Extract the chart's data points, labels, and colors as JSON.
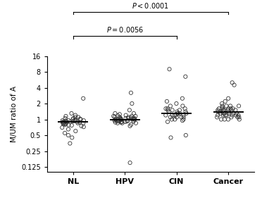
{
  "groups": [
    "NL",
    "HPV",
    "CIN",
    "Cancer"
  ],
  "group_positions": [
    1,
    2,
    3,
    4
  ],
  "ylabel": "M/UM ratio of A",
  "yticks": [
    0.125,
    0.25,
    0.5,
    1,
    2,
    4,
    8,
    16
  ],
  "ytick_labels": [
    "0.125",
    "0.25",
    "0.5",
    "1",
    "2",
    "4",
    "8",
    "16"
  ],
  "background_color": "#ffffff",
  "dot_color": "none",
  "dot_edgecolor": "#333333",
  "dot_size": 14,
  "dot_linewidth": 0.6,
  "median_linewidth": 1.4,
  "median_color": "#000000",
  "bracket1_label": "$P = 0.0056$",
  "bracket2_label": "$P < 0.0001$",
  "NL_data": [
    0.9,
    0.85,
    1.1,
    0.95,
    0.8,
    1.05,
    0.9,
    0.75,
    1.2,
    0.85,
    0.7,
    0.95,
    1.0,
    0.88,
    0.82,
    1.15,
    0.78,
    0.92,
    1.3,
    0.65,
    0.6,
    0.55,
    0.5,
    0.35,
    0.45,
    0.88,
    0.92,
    1.05,
    0.98,
    0.87,
    1.1,
    0.93,
    0.83,
    2.5,
    0.72,
    1.02,
    0.96,
    0.81,
    0.9,
    0.77,
    0.88,
    1.0,
    0.95
  ],
  "HPV_data": [
    1.0,
    0.95,
    1.1,
    1.05,
    0.9,
    1.2,
    0.85,
    1.15,
    0.8,
    1.0,
    1.3,
    0.92,
    1.05,
    0.88,
    1.18,
    0.95,
    1.02,
    0.85,
    1.25,
    1.0,
    0.9,
    1.1,
    1.05,
    0.95,
    1.15,
    1.0,
    0.85,
    1.08,
    0.92,
    1.15,
    2.0,
    1.5,
    0.75,
    3.2,
    1.3,
    0.9,
    1.0,
    1.05,
    0.95,
    0.88,
    1.12,
    0.98,
    1.0,
    0.15,
    1.05,
    0.92
  ],
  "CIN_data": [
    1.2,
    1.5,
    1.1,
    0.95,
    1.3,
    1.8,
    2.0,
    1.4,
    1.0,
    1.2,
    0.9,
    1.6,
    1.3,
    1.5,
    1.1,
    0.5,
    0.45,
    1.2,
    2.5,
    1.8,
    2.2,
    1.0,
    1.4,
    1.3,
    1.1,
    1.5,
    1.6,
    1.2,
    9.0,
    6.5,
    1.3,
    1.0,
    1.4,
    1.2,
    1.6,
    1.1
  ],
  "Cancer_data": [
    1.2,
    1.5,
    1.3,
    1.1,
    1.6,
    1.8,
    2.0,
    1.4,
    1.0,
    1.2,
    1.5,
    1.3,
    1.6,
    2.2,
    1.1,
    1.8,
    1.4,
    1.0,
    1.3,
    1.5,
    1.2,
    1.6,
    2.5,
    1.4,
    1.2,
    1.1,
    1.7,
    1.3,
    1.5,
    1.0,
    1.6,
    5.0,
    4.5,
    1.8,
    1.3,
    1.2,
    1.5,
    1.1,
    1.4,
    1.6,
    1.2,
    1.3,
    1.0,
    1.5,
    1.8,
    1.2
  ]
}
